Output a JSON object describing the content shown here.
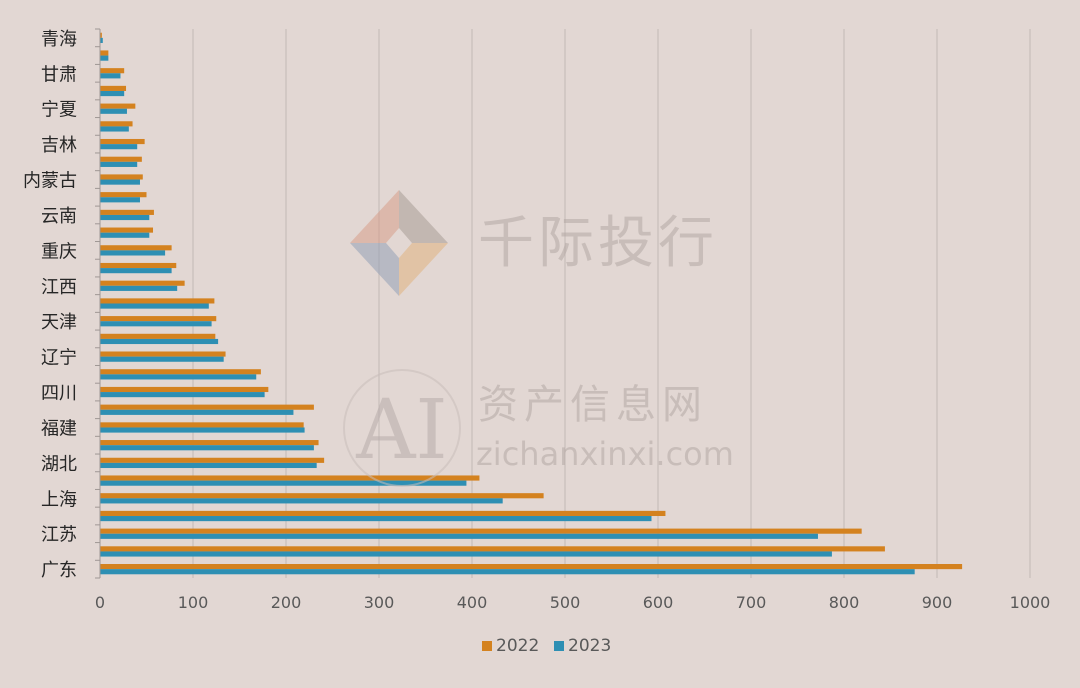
{
  "chart_data": {
    "type": "bar",
    "orientation": "horizontal",
    "title": "",
    "xlabel": "",
    "ylabel": "",
    "xlim": [
      0,
      1000
    ],
    "x_ticks": [
      "0",
      "100",
      "200",
      "300",
      "400",
      "500",
      "600",
      "700",
      "800",
      "900",
      "1000"
    ],
    "grid": "vertical",
    "legend_position": "bottom",
    "categories": [
      {
        "label": "广东",
        "shown": true
      },
      {
        "label": "",
        "shown": false
      },
      {
        "label": "江苏",
        "shown": true
      },
      {
        "label": "",
        "shown": false
      },
      {
        "label": "上海",
        "shown": true
      },
      {
        "label": "",
        "shown": false
      },
      {
        "label": "湖北",
        "shown": true
      },
      {
        "label": "",
        "shown": false
      },
      {
        "label": "福建",
        "shown": true
      },
      {
        "label": "",
        "shown": false
      },
      {
        "label": "四川",
        "shown": true
      },
      {
        "label": "",
        "shown": false
      },
      {
        "label": "辽宁",
        "shown": true
      },
      {
        "label": "",
        "shown": false
      },
      {
        "label": "天津",
        "shown": true
      },
      {
        "label": "",
        "shown": false
      },
      {
        "label": "江西",
        "shown": true
      },
      {
        "label": "",
        "shown": false
      },
      {
        "label": "重庆",
        "shown": true
      },
      {
        "label": "",
        "shown": false
      },
      {
        "label": "云南",
        "shown": true
      },
      {
        "label": "",
        "shown": false
      },
      {
        "label": "内蒙古",
        "shown": true
      },
      {
        "label": "",
        "shown": false
      },
      {
        "label": "吉林",
        "shown": true
      },
      {
        "label": "",
        "shown": false
      },
      {
        "label": "宁夏",
        "shown": true
      },
      {
        "label": "",
        "shown": false
      },
      {
        "label": "甘肃",
        "shown": true
      },
      {
        "label": "",
        "shown": false
      },
      {
        "label": "青海",
        "shown": true
      }
    ],
    "series": [
      {
        "name": "2022",
        "color": "#d4821f",
        "values": [
          927,
          844,
          819,
          608,
          477,
          408,
          241,
          235,
          219,
          230,
          181,
          173,
          135,
          124,
          125,
          123,
          91,
          82,
          77,
          57,
          58,
          50,
          46,
          45,
          48,
          35,
          38,
          28,
          26,
          9,
          2
        ]
      },
      {
        "name": "2023",
        "color": "#2e8fb3",
        "values": [
          876,
          787,
          772,
          593,
          433,
          394,
          233,
          230,
          220,
          208,
          177,
          168,
          133,
          127,
          120,
          117,
          83,
          77,
          70,
          53,
          53,
          43,
          43,
          40,
          40,
          31,
          29,
          26,
          22,
          9,
          3
        ]
      }
    ]
  },
  "watermark": {
    "brand": "千际投行",
    "ai_mark": "AI",
    "site_name": "资产信息网",
    "site_domain": "zichanxinxi.com"
  }
}
